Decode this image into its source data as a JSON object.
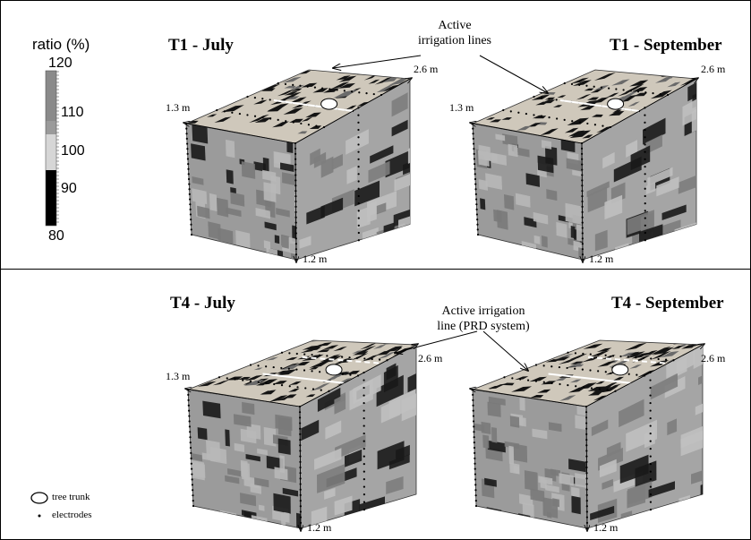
{
  "legend": {
    "title": "ratio (%)",
    "ticks": [
      "120",
      "110",
      "100",
      "90",
      "80"
    ],
    "bands": [
      {
        "range": "110-120",
        "color": "#8a8a8a"
      },
      {
        "range": "100-110",
        "color": "#9a9a9a"
      },
      {
        "range": "90-100",
        "color": "#d6d6d6"
      },
      {
        "range": "80-90",
        "color": "#000000"
      }
    ]
  },
  "panels": {
    "t1_july": "T1 - July",
    "t1_september": "T1 - September",
    "t4_july": "T4 - July",
    "t4_september": "T4 - September"
  },
  "annotations": {
    "top_line1": "Active",
    "top_line2": "irrigation lines",
    "bottom_line1": "Active irrigation",
    "bottom_line2": "line (PRD system)"
  },
  "dimensions": {
    "width": "1.3 m",
    "length": "2.6 m",
    "depth": "1.2 m"
  },
  "key": {
    "tree_trunk": "tree trunk",
    "electrodes": "electrodes"
  },
  "colors": {
    "face_gray": "#9b9b9b",
    "top_beige": "#cfc8bb",
    "dark_patch": "#141414"
  }
}
